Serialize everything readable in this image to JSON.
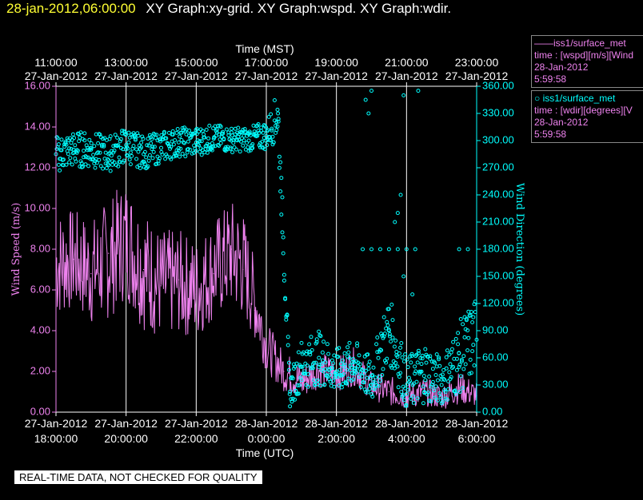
{
  "header": {
    "timestamp": "28-jan-2012,06:00:00",
    "title": "XY Graph:xy-grid.  XY Graph:wspd.  XY Graph:wdir."
  },
  "legend": {
    "items": [
      {
        "line1": "——iss1/surface_met",
        "line2": "time : [wspd][m/s][Wind",
        "line3": "28-Jan-2012",
        "line4": "5:59:58",
        "color": "#ee82ee"
      },
      {
        "line1": "○ iss1/surface_met",
        "line2": "time : [wdir][degrees][V",
        "line3": "28-Jan-2012",
        "line4": "5:59:58",
        "color": "#00ffff"
      }
    ]
  },
  "footer": {
    "text": "REAL-TIME DATA, NOT CHECKED FOR QUALITY"
  },
  "chart_data": {
    "type": "line",
    "x_bottom_label": "Time (UTC)",
    "x_top_label": "Time (MST)",
    "y_left_label": "Wind Speed (m/s)",
    "y_right_label": "Wind Direction (degrees)",
    "y_left_range": [
      0,
      16
    ],
    "y_right_range": [
      0,
      360
    ],
    "y_left_ticks": [
      "0.00",
      "2.00",
      "4.00",
      "6.00",
      "8.00",
      "10.00",
      "12.00",
      "14.00",
      "16.00"
    ],
    "y_right_ticks": [
      "0.00",
      "30.00",
      "60.00",
      "90.00",
      "120.00",
      "150.00",
      "180.00",
      "210.00",
      "240.00",
      "270.00",
      "300.00",
      "330.00",
      "360.00"
    ],
    "x_range_utc": [
      "2012-01-27T18:00",
      "2012-01-28T06:00"
    ],
    "x_bottom_ticks": [
      {
        "date": "27-Jan-2012",
        "time": "18:00:00"
      },
      {
        "date": "27-Jan-2012",
        "time": "20:00:00"
      },
      {
        "date": "27-Jan-2012",
        "time": "22:00:00"
      },
      {
        "date": "28-Jan-2012",
        "time": "0:00:00"
      },
      {
        "date": "28-Jan-2012",
        "time": "2:00:00"
      },
      {
        "date": "28-Jan-2012",
        "time": "4:00:00"
      },
      {
        "date": "28-Jan-2012",
        "time": "6:00:00"
      }
    ],
    "x_top_ticks": [
      {
        "date": "27-Jan-2012",
        "time": "11:00:00"
      },
      {
        "date": "27-Jan-2012",
        "time": "13:00:00"
      },
      {
        "date": "27-Jan-2012",
        "time": "15:00:00"
      },
      {
        "date": "27-Jan-2012",
        "time": "17:00:00"
      },
      {
        "date": "27-Jan-2012",
        "time": "19:00:00"
      },
      {
        "date": "27-Jan-2012",
        "time": "21:00:00"
      },
      {
        "date": "27-Jan-2012",
        "time": "23:00:00"
      }
    ],
    "grid": "vertical",
    "series": [
      {
        "name": "iss1/surface_met wspd",
        "color": "#ee82ee",
        "style": "line",
        "axis": "left",
        "x": [
          "2012-01-27T18:00",
          "2012-01-27T18:30",
          "2012-01-27T19:00",
          "2012-01-27T19:30",
          "2012-01-27T20:00",
          "2012-01-27T20:30",
          "2012-01-27T21:00",
          "2012-01-27T21:30",
          "2012-01-27T22:00",
          "2012-01-27T22:30",
          "2012-01-27T23:00",
          "2012-01-27T23:20",
          "2012-01-27T23:40",
          "2012-01-28T00:00",
          "2012-01-28T00:30",
          "2012-01-28T01:00",
          "2012-01-28T01:30",
          "2012-01-28T02:00",
          "2012-01-28T02:30",
          "2012-01-28T03:00",
          "2012-01-28T03:30",
          "2012-01-28T04:00",
          "2012-01-28T04:30",
          "2012-01-28T05:00",
          "2012-01-28T05:30",
          "2012-01-28T06:00"
        ],
        "y": [
          7.0,
          7.5,
          6.8,
          7.8,
          8.3,
          7.0,
          6.2,
          6.5,
          5.8,
          6.8,
          8.0,
          7.0,
          5.0,
          3.0,
          2.0,
          1.5,
          2.0,
          1.8,
          2.2,
          1.2,
          1.0,
          0.8,
          1.0,
          0.7,
          1.2,
          0.8
        ],
        "y_low": [
          4.5,
          5.0,
          4.2,
          4.5,
          5.5,
          4.0,
          3.5,
          3.8,
          3.5,
          4.5,
          5.0,
          4.5,
          3.5,
          2.0,
          1.0,
          0.5,
          1.2,
          1.0,
          1.3,
          0.6,
          0.3,
          0.1,
          0.3,
          0.1,
          0.4,
          0.2
        ],
        "y_high": [
          10.0,
          10.0,
          9.5,
          10.5,
          11.5,
          10.0,
          9.0,
          9.0,
          8.5,
          9.5,
          10.5,
          10.0,
          7.5,
          4.5,
          3.0,
          2.5,
          3.0,
          2.7,
          3.2,
          2.0,
          1.8,
          1.5,
          1.7,
          1.4,
          2.0,
          1.5
        ]
      },
      {
        "name": "iss1/surface_met wdir",
        "color": "#00ffff",
        "style": "scatter",
        "axis": "right",
        "x": [
          "2012-01-27T18:00",
          "2012-01-27T18:30",
          "2012-01-27T19:00",
          "2012-01-27T19:30",
          "2012-01-27T20:00",
          "2012-01-27T20:30",
          "2012-01-27T21:00",
          "2012-01-27T21:30",
          "2012-01-27T22:00",
          "2012-01-27T22:30",
          "2012-01-27T23:00",
          "2012-01-27T23:30",
          "2012-01-28T00:00",
          "2012-01-28T00:20",
          "2012-01-28T00:40",
          "2012-01-28T01:00",
          "2012-01-28T01:30",
          "2012-01-28T02:00",
          "2012-01-28T02:30",
          "2012-01-28T03:00",
          "2012-01-28T03:30",
          "2012-01-28T04:00",
          "2012-01-28T04:30",
          "2012-01-28T05:00",
          "2012-01-28T05:30",
          "2012-01-28T06:00"
        ],
        "y": [
          285,
          290,
          290,
          285,
          295,
          285,
          292,
          298,
          298,
          302,
          300,
          300,
          305,
          330,
          20,
          50,
          60,
          45,
          55,
          30,
          90,
          20,
          40,
          30,
          50,
          80
        ],
        "y_low": [
          265,
          270,
          270,
          265,
          275,
          268,
          275,
          282,
          282,
          288,
          287,
          288,
          290,
          300,
          5,
          25,
          30,
          20,
          30,
          10,
          55,
          3,
          10,
          8,
          20,
          40
        ],
        "y_high": [
          305,
          310,
          310,
          305,
          315,
          305,
          310,
          315,
          315,
          318,
          315,
          315,
          322,
          355,
          40,
          80,
          90,
          70,
          80,
          60,
          130,
          60,
          80,
          60,
          100,
          130
        ],
        "extra_points": [
          {
            "x": "2012-01-28T02:45",
            "y": 180
          },
          {
            "x": "2012-01-28T03:00",
            "y": 180
          },
          {
            "x": "2012-01-28T03:15",
            "y": 180
          },
          {
            "x": "2012-01-28T03:30",
            "y": 180
          },
          {
            "x": "2012-01-28T03:45",
            "y": 180
          },
          {
            "x": "2012-01-28T04:00",
            "y": 180
          },
          {
            "x": "2012-01-28T04:15",
            "y": 180
          },
          {
            "x": "2012-01-28T05:30",
            "y": 180
          },
          {
            "x": "2012-01-28T05:45",
            "y": 180
          },
          {
            "x": "2012-01-28T03:50",
            "y": 240
          },
          {
            "x": "2012-01-28T03:40",
            "y": 210
          },
          {
            "x": "2012-01-28T03:45",
            "y": 220
          },
          {
            "x": "2012-01-28T03:55",
            "y": 150
          },
          {
            "x": "2012-01-28T04:10",
            "y": 130
          },
          {
            "x": "2012-01-28T02:50",
            "y": 345
          },
          {
            "x": "2012-01-28T02:55",
            "y": 330
          },
          {
            "x": "2012-01-28T03:00",
            "y": 355
          },
          {
            "x": "2012-01-28T03:55",
            "y": 350
          },
          {
            "x": "2012-01-28T04:20",
            "y": 355
          }
        ]
      }
    ]
  }
}
